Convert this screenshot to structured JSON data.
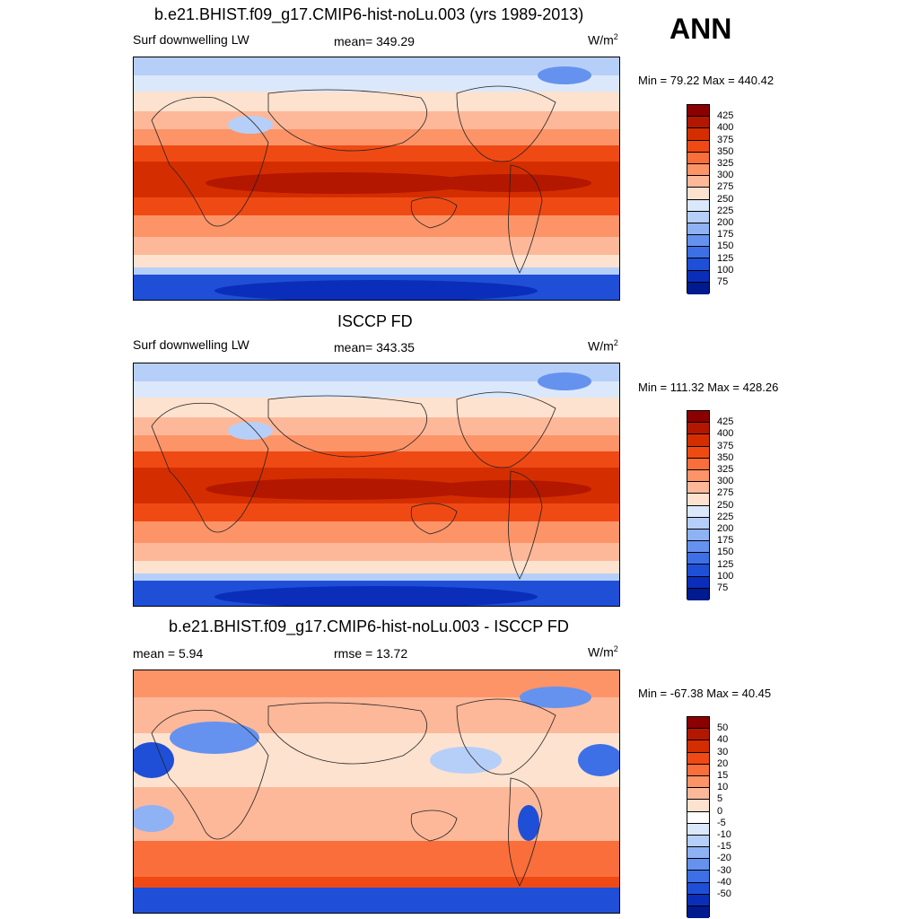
{
  "figure_label": "ANN",
  "panels": [
    {
      "title": "b.e21.BHIST.f09_g17.CMIP6-hist-noLu.003 (yrs 1989-2013)",
      "left_label": "Surf downwelling LW",
      "center_label": "mean= 349.29",
      "units": "W/m",
      "units_sup": "2",
      "minmax": "Min =  79.22 Max = 440.42",
      "ticks": [
        "425",
        "400",
        "375",
        "350",
        "325",
        "300",
        "275",
        "250",
        "225",
        "200",
        "175",
        "150",
        "125",
        "100",
        "75"
      ],
      "colors": [
        "#8b0000",
        "#b31700",
        "#d42e00",
        "#f04a14",
        "#fa6e3c",
        "#fc9468",
        "#fdb899",
        "#fde2cf",
        "#dbe8fb",
        "#b6cff8",
        "#8fb2f5",
        "#6592ef",
        "#3d70e6",
        "#1f4fd6",
        "#0a2eba",
        "#001a8f"
      ]
    },
    {
      "title": "ISCCP FD",
      "left_label": "Surf downwelling LW",
      "center_label": "mean= 343.35",
      "units": "W/m",
      "units_sup": "2",
      "minmax": "Min = 111.32 Max = 428.26",
      "ticks": [
        "425",
        "400",
        "375",
        "350",
        "325",
        "300",
        "275",
        "250",
        "225",
        "200",
        "175",
        "150",
        "125",
        "100",
        "75"
      ],
      "colors": [
        "#8b0000",
        "#b31700",
        "#d42e00",
        "#f04a14",
        "#fa6e3c",
        "#fc9468",
        "#fdb899",
        "#fde2cf",
        "#dbe8fb",
        "#b6cff8",
        "#8fb2f5",
        "#6592ef",
        "#3d70e6",
        "#1f4fd6",
        "#0a2eba",
        "#001a8f"
      ]
    },
    {
      "title": "b.e21.BHIST.f09_g17.CMIP6-hist-noLu.003 - ISCCP FD",
      "left_label": "mean =   5.94",
      "center_label": "rmse =  13.72",
      "units": "W/m",
      "units_sup": "2",
      "minmax": "Min = -67.38 Max =  40.45",
      "ticks": [
        "50",
        "40",
        "30",
        "20",
        "15",
        "10",
        "5",
        "0",
        "-5",
        "-10",
        "-15",
        "-20",
        "-30",
        "-40",
        "-50"
      ],
      "colors": [
        "#8b0000",
        "#b31700",
        "#d42e00",
        "#f04a14",
        "#fa6e3c",
        "#fc9468",
        "#fdb899",
        "#fde2cf",
        "#ffffff",
        "#dbe8fb",
        "#b6cff8",
        "#8fb2f5",
        "#6592ef",
        "#3d70e6",
        "#1f4fd6",
        "#0a2eba",
        "#001a8f"
      ]
    }
  ]
}
